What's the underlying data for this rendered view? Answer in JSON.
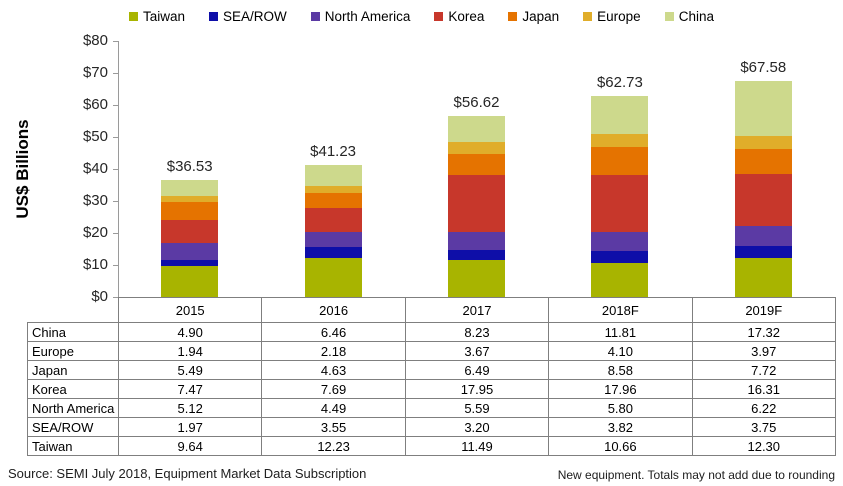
{
  "legend": {
    "items": [
      {
        "label": "Taiwan",
        "color": "#a8b400"
      },
      {
        "label": "SEA/ROW",
        "color": "#0e0ea8"
      },
      {
        "label": "North America",
        "color": "#5b3aa4"
      },
      {
        "label": "Korea",
        "color": "#c7372b"
      },
      {
        "label": "Japan",
        "color": "#e57300"
      },
      {
        "label": "Europe",
        "color": "#e0ad2a"
      },
      {
        "label": "China",
        "color": "#cdd98c"
      }
    ]
  },
  "chart_data": {
    "type": "bar",
    "subtype": "stacked-vertical",
    "title": "",
    "xlabel": "",
    "ylabel": "US$ Billions",
    "ylim": [
      0,
      80
    ],
    "ytick_step": 10,
    "ytick_labels": [
      "$0",
      "$10",
      "$20",
      "$30",
      "$40",
      "$50",
      "$60",
      "$70",
      "$80"
    ],
    "grid": false,
    "legend_position": "top",
    "categories": [
      "2015",
      "2016",
      "2017",
      "2018F",
      "2019F"
    ],
    "series": [
      {
        "name": "Taiwan",
        "color": "#a8b400",
        "values": [
          9.64,
          12.23,
          11.49,
          10.66,
          12.3
        ]
      },
      {
        "name": "SEA/ROW",
        "color": "#0e0ea8",
        "values": [
          1.97,
          3.55,
          3.2,
          3.82,
          3.75
        ]
      },
      {
        "name": "North America",
        "color": "#5b3aa4",
        "values": [
          5.12,
          4.49,
          5.59,
          5.8,
          6.22
        ]
      },
      {
        "name": "Korea",
        "color": "#c7372b",
        "values": [
          7.47,
          7.69,
          17.95,
          17.96,
          16.31
        ]
      },
      {
        "name": "Japan",
        "color": "#e57300",
        "values": [
          5.49,
          4.63,
          6.49,
          8.58,
          7.72
        ]
      },
      {
        "name": "Europe",
        "color": "#e0ad2a",
        "values": [
          1.94,
          2.18,
          3.67,
          4.1,
          3.97
        ]
      },
      {
        "name": "China",
        "color": "#cdd98c",
        "values": [
          4.9,
          6.46,
          8.23,
          11.81,
          17.32
        ]
      }
    ],
    "total_labels": [
      "$36.53",
      "$41.23",
      "$56.62",
      "$62.73",
      "$67.58"
    ]
  },
  "table": {
    "year_headers": [
      "2015",
      "2016",
      "2017",
      "2018F",
      "2019F"
    ],
    "rows": [
      {
        "region": "China",
        "values": [
          "4.90",
          "6.46",
          "8.23",
          "11.81",
          "17.32"
        ]
      },
      {
        "region": "Europe",
        "values": [
          "1.94",
          "2.18",
          "3.67",
          "4.10",
          "3.97"
        ]
      },
      {
        "region": "Japan",
        "values": [
          "5.49",
          "4.63",
          "6.49",
          "8.58",
          "7.72"
        ]
      },
      {
        "region": "Korea",
        "values": [
          "7.47",
          "7.69",
          "17.95",
          "17.96",
          "16.31"
        ]
      },
      {
        "region": "North America",
        "values": [
          "5.12",
          "4.49",
          "5.59",
          "5.80",
          "6.22"
        ]
      },
      {
        "region": "SEA/ROW",
        "values": [
          "1.97",
          "3.55",
          "3.20",
          "3.82",
          "3.75"
        ]
      },
      {
        "region": "Taiwan",
        "values": [
          "9.64",
          "12.23",
          "11.49",
          "10.66",
          "12.30"
        ]
      }
    ]
  },
  "footer": {
    "source": "Source: SEMI July 2018, Equipment Market Data Subscription",
    "note": "New equipment. Totals may not add due to rounding"
  }
}
